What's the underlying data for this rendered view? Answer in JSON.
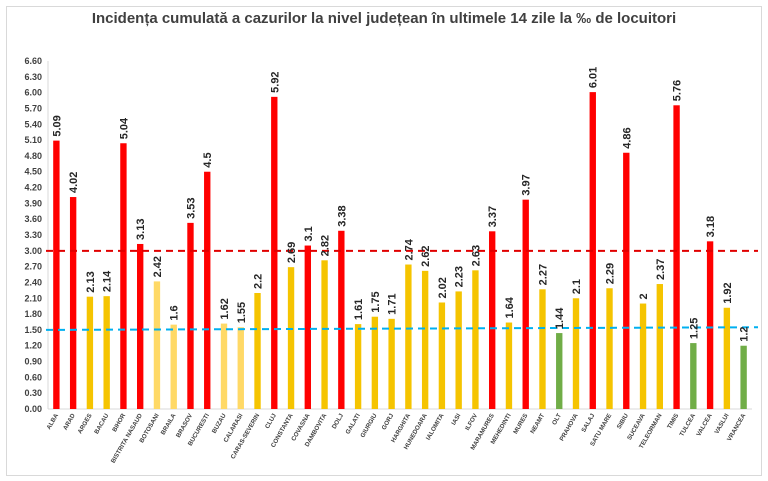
{
  "chart_data": {
    "type": "bar",
    "title": "Incidența cumulată a cazurilor la nivel județean în ultimele 14 zile la ‰ de locuitori",
    "categories": [
      "ALBA",
      "ARAD",
      "ARGES",
      "BACAU",
      "BIHOR",
      "BISTRITA NASAUD",
      "BOTOSANI",
      "BRAILA",
      "BRASOV",
      "BUCURESTI",
      "BUZAU",
      "CALARASI",
      "CARAS-SEVERIN",
      "CLUJ",
      "CONSTANTA",
      "COVASNA",
      "DAMBOVITA",
      "DOLJ",
      "GALATI",
      "GIURGIU",
      "GORJ",
      "HARGHITA",
      "HUNEDOARA",
      "IALOMITA",
      "IASI",
      "ILFOV",
      "MARAMURES",
      "MEHEDINTI",
      "MURES",
      "NEAMT",
      "OLT",
      "PRAHOVA",
      "SALAJ",
      "SATU MARE",
      "SIBIU",
      "SUCEAVA",
      "TELEORMAN",
      "TIMIS",
      "TULCEA",
      "VALCEA",
      "VASLUI",
      "VRANCEA"
    ],
    "values": [
      5.09,
      4.02,
      2.13,
      2.14,
      5.04,
      3.13,
      2.42,
      1.6,
      3.53,
      4.5,
      1.62,
      1.55,
      2.2,
      5.92,
      2.69,
      3.1,
      2.82,
      3.38,
      1.61,
      1.75,
      1.71,
      2.74,
      2.62,
      2.02,
      2.23,
      2.63,
      3.37,
      1.64,
      3.97,
      2.27,
      1.44,
      2.1,
      6.01,
      2.29,
      4.86,
      2,
      2.37,
      5.76,
      1.25,
      3.18,
      1.92,
      1.2
    ],
    "labels": [
      "5.09",
      "4.02",
      "2.13",
      "2.14",
      "5.04",
      "3.13",
      "2.42",
      "1.6",
      "3.53",
      "4.5",
      "1.62",
      "1.55",
      "2.2",
      "5.92",
      "2.69",
      "3.1",
      "2.82",
      "3.38",
      "1.61",
      "1.75",
      "1.71",
      "2.74",
      "2.62",
      "2.02",
      "2.23",
      "2.63",
      "3.37",
      "1.64",
      "3.97",
      "2.27",
      "1.44",
      "2.1",
      "6.01",
      "2.29",
      "4.86",
      "2",
      "2.37",
      "5.76",
      "1.25",
      "3.18",
      "1.92",
      "1.2"
    ],
    "bar_colors": [
      "#ff0000",
      "#ff0000",
      "#f5c400",
      "#f5c400",
      "#ff0000",
      "#ff0000",
      "#ffd966",
      "#ffd966",
      "#ff0000",
      "#ff0000",
      "#ffd966",
      "#ffd966",
      "#f5c400",
      "#ff0000",
      "#f5c400",
      "#ff0000",
      "#f5c400",
      "#ff0000",
      "#f5c400",
      "#f5c400",
      "#f5c400",
      "#f5c400",
      "#f5c400",
      "#f5c400",
      "#f5c400",
      "#f5c400",
      "#ff0000",
      "#f5c400",
      "#ff0000",
      "#f5c400",
      "#70ad47",
      "#f5c400",
      "#ff0000",
      "#f5c400",
      "#ff0000",
      "#f5c400",
      "#f5c400",
      "#ff0000",
      "#70ad47",
      "#ff0000",
      "#f5c400",
      "#70ad47"
    ],
    "yticks": [
      "0.00",
      "0.30",
      "0.60",
      "0.90",
      "1.20",
      "1.50",
      "1.80",
      "2.10",
      "2.40",
      "2.70",
      "3.00",
      "3.30",
      "3.60",
      "3.90",
      "4.20",
      "4.50",
      "4.80",
      "5.10",
      "5.40",
      "5.70",
      "6.00",
      "6.30",
      "6.60"
    ],
    "ylim": [
      0,
      6.6
    ],
    "reference_lines": [
      {
        "value": 3.0,
        "color": "#e00000",
        "style": "dashed"
      },
      {
        "value": 1.5,
        "value_end": 1.55,
        "color": "#00b0f0",
        "style": "dashed"
      }
    ],
    "grid": false,
    "legend": "none",
    "xlabel": "",
    "ylabel": ""
  }
}
